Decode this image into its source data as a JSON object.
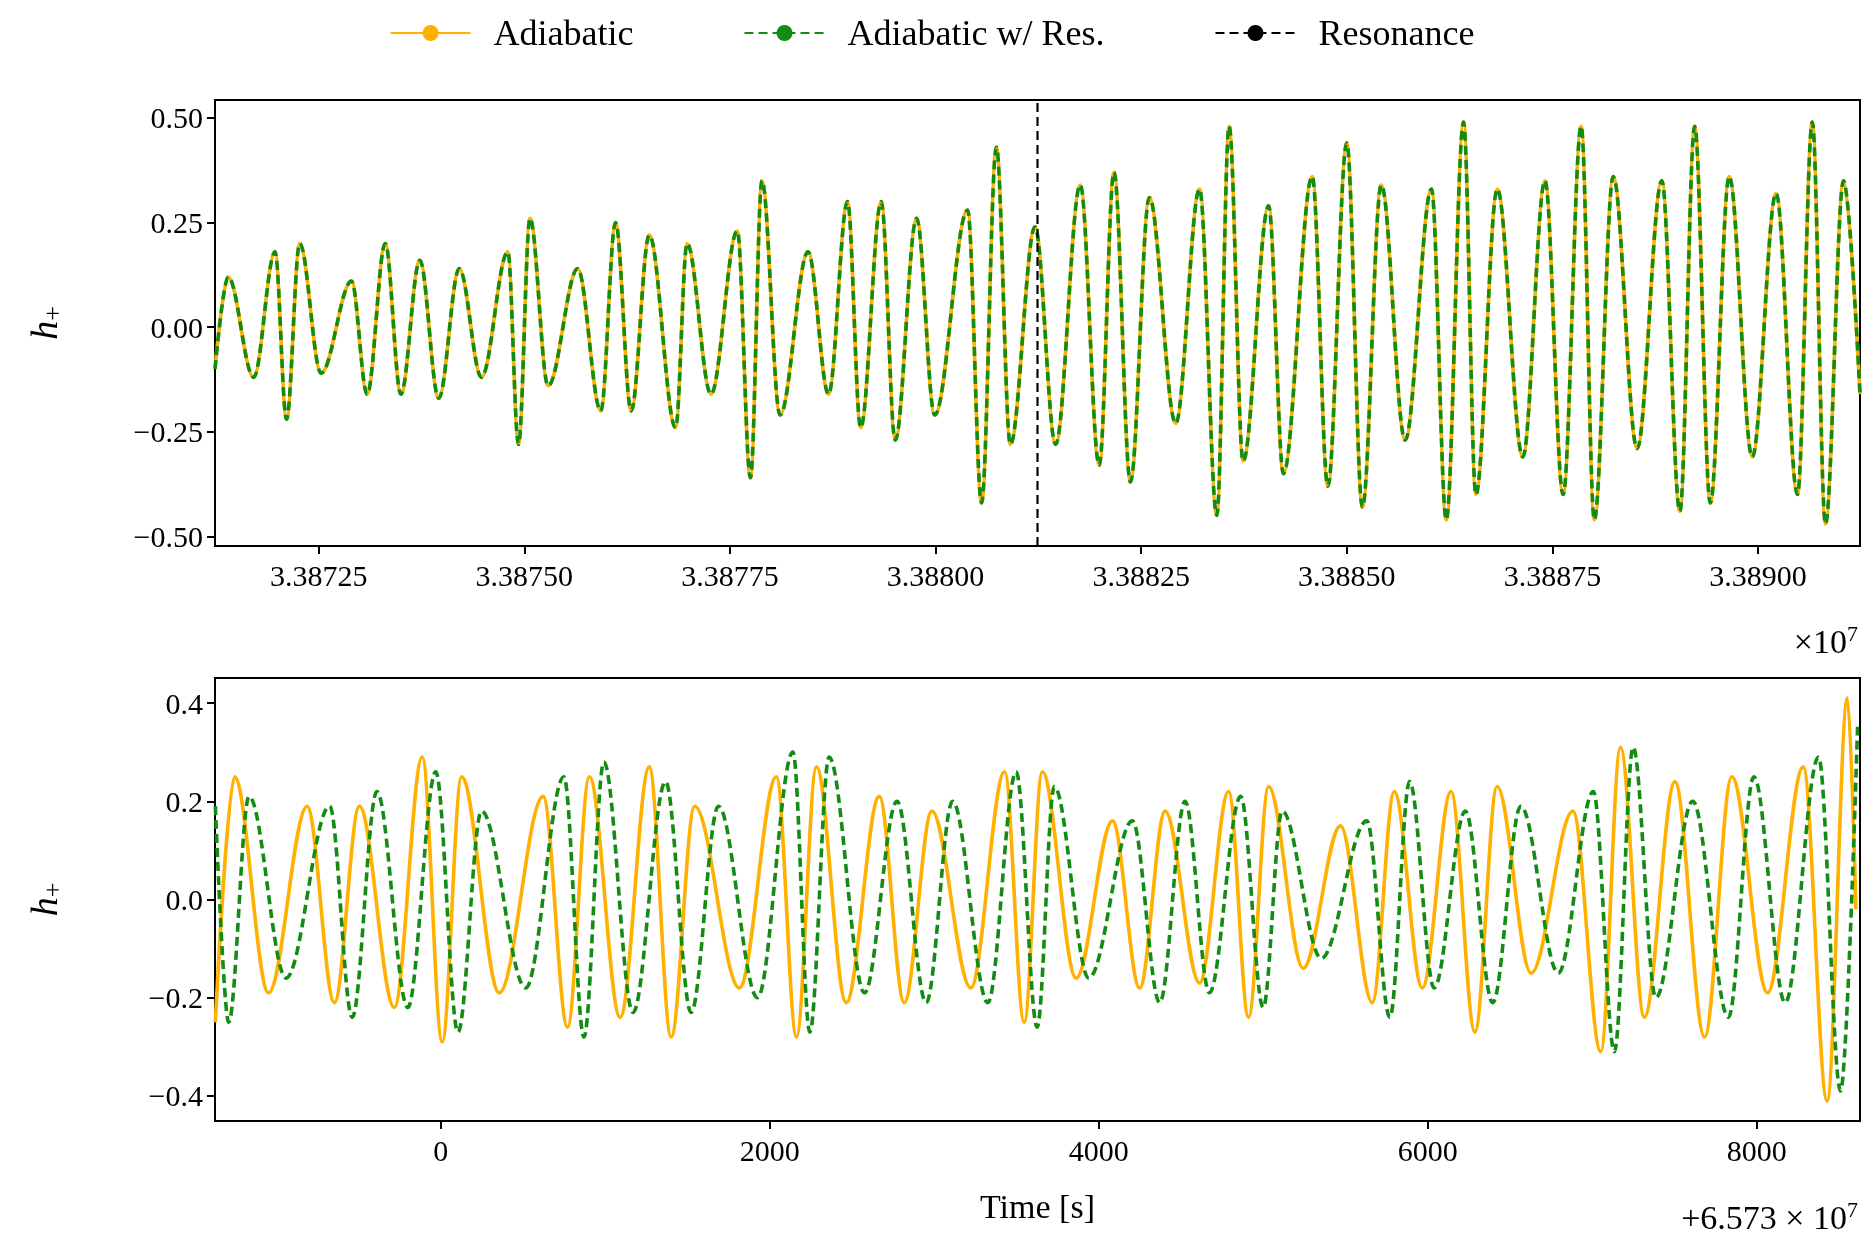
{
  "chart_data": [
    {
      "type": "line",
      "ylabel": "h$_{+}$",
      "annotations": [
        "×10$^{7}$"
      ],
      "legend": "top",
      "marker": "none",
      "xlim": [
        3.387124,
        3.389124
      ],
      "xticks": [
        3.38725,
        {
          "value": 3.3875,
          "label": "3.38750"
        },
        3.38775,
        {
          "value": 3.388,
          "label": "3.38800"
        },
        3.38825,
        {
          "value": 3.3885,
          "label": "3.38850"
        },
        3.38875,
        {
          "value": 3.389,
          "label": "3.38900"
        }
      ],
      "ylim": [
        -0.523,
        0.543
      ],
      "yticks": [
        {
          "value": -0.5,
          "label": "−0.50"
        },
        {
          "value": -0.25,
          "label": "−0.25"
        },
        {
          "value": 0,
          "label": "0.00"
        },
        {
          "value": 0.25,
          "label": "0.25"
        },
        {
          "value": 0.5,
          "label": "0.50"
        }
      ],
      "ref_lines": [
        {
          "axis": "x",
          "value": 3.388124,
          "label": "Resonance",
          "color": "#000000",
          "line_style": "dashed"
        }
      ],
      "x": [
        3.387124,
        3.38714,
        3.387171,
        3.387197,
        3.387211,
        3.387227,
        3.387253,
        3.38729,
        3.387309,
        3.387331,
        3.38735,
        3.387373,
        3.387396,
        3.387421,
        3.387448,
        3.38748,
        3.387493,
        3.387507,
        3.387529,
        3.387565,
        3.387593,
        3.387611,
        3.38763,
        3.387652,
        3.387684,
        3.387698,
        3.387727,
        3.387759,
        3.387775,
        3.387789,
        3.387811,
        3.387845,
        3.38787,
        3.387893,
        3.387909,
        3.387934,
        3.387951,
        3.387977,
        3.387999,
        3.388039,
        3.388056,
        3.388074,
        3.388091,
        3.388121,
        3.388146,
        3.388176,
        3.388199,
        3.388217,
        3.388237,
        3.38826,
        3.388292,
        3.388321,
        3.388342,
        3.388357,
        3.388374,
        3.388405,
        3.388423,
        3.388458,
        3.388477,
        3.3885,
        3.388519,
        3.388542,
        3.388571,
        3.388603,
        3.388621,
        3.388642,
        3.388657,
        3.388683,
        3.388714,
        3.388741,
        3.388763,
        3.388785,
        3.388801,
        3.388824,
        3.388853,
        3.388883,
        3.388905,
        3.388923,
        3.388942,
        3.388965,
        3.388993,
        3.389022,
        3.389048,
        3.389066,
        3.389082,
        3.389104,
        3.389124
      ],
      "series": [
        {
          "name": "Adiabatic",
          "color": "#ffb000",
          "line_style": "solid",
          "values": [
            -0.1,
            0.12,
            -0.12,
            0.18,
            -0.22,
            0.2,
            -0.11,
            0.11,
            -0.16,
            0.2,
            -0.16,
            0.16,
            -0.17,
            0.14,
            -0.12,
            0.18,
            -0.28,
            0.26,
            -0.14,
            0.14,
            -0.2,
            0.25,
            -0.2,
            0.22,
            -0.24,
            0.2,
            -0.16,
            0.23,
            -0.36,
            0.35,
            -0.21,
            0.18,
            -0.16,
            0.3,
            -0.24,
            0.3,
            -0.27,
            0.26,
            -0.21,
            0.28,
            -0.42,
            0.43,
            -0.28,
            0.24,
            -0.28,
            0.34,
            -0.33,
            0.37,
            -0.37,
            0.31,
            -0.23,
            0.33,
            -0.45,
            0.48,
            -0.32,
            0.29,
            -0.35,
            0.36,
            -0.38,
            0.44,
            -0.43,
            0.34,
            -0.27,
            0.33,
            -0.46,
            0.49,
            -0.4,
            0.33,
            -0.31,
            0.35,
            -0.4,
            0.48,
            -0.46,
            0.36,
            -0.29,
            0.35,
            -0.44,
            0.48,
            -0.42,
            0.36,
            -0.31,
            0.32,
            -0.4,
            0.49,
            -0.47,
            0.35,
            -0.16
          ]
        },
        {
          "name": "Adiabatic w/ Res.",
          "color": "#138c13",
          "line_style": "dashed",
          "values": [
            -0.1,
            0.12,
            -0.12,
            0.18,
            -0.22,
            0.2,
            -0.11,
            0.11,
            -0.16,
            0.2,
            -0.16,
            0.16,
            -0.17,
            0.14,
            -0.12,
            0.18,
            -0.28,
            0.26,
            -0.14,
            0.14,
            -0.2,
            0.25,
            -0.2,
            0.22,
            -0.24,
            0.2,
            -0.16,
            0.23,
            -0.36,
            0.35,
            -0.21,
            0.18,
            -0.16,
            0.3,
            -0.24,
            0.3,
            -0.27,
            0.26,
            -0.21,
            0.28,
            -0.42,
            0.43,
            -0.28,
            0.24,
            -0.28,
            0.34,
            -0.33,
            0.37,
            -0.37,
            0.31,
            -0.23,
            0.33,
            -0.45,
            0.48,
            -0.32,
            0.29,
            -0.35,
            0.36,
            -0.38,
            0.44,
            -0.43,
            0.34,
            -0.27,
            0.33,
            -0.46,
            0.49,
            -0.4,
            0.33,
            -0.31,
            0.35,
            -0.4,
            0.48,
            -0.46,
            0.36,
            -0.29,
            0.35,
            -0.44,
            0.48,
            -0.42,
            0.36,
            -0.31,
            0.32,
            -0.4,
            0.49,
            -0.47,
            0.35,
            -0.16
          ]
        }
      ]
    },
    {
      "type": "line",
      "xlabel": "Time [s]",
      "ylabel": "h$_{+}$",
      "annotations": [
        "+6.573 × 10$^{7}$"
      ],
      "marker": "none",
      "xlim": [
        -1372,
        8628
      ],
      "xticks": [
        0,
        2000,
        4000,
        6000,
        8000
      ],
      "ylim": [
        -0.451,
        0.451
      ],
      "yticks": [
        {
          "value": -0.4,
          "label": "−0.4"
        },
        {
          "value": -0.2,
          "label": "−0.2"
        },
        {
          "value": 0,
          "label": "0.0"
        },
        {
          "value": 0.2,
          "label": "0.2"
        },
        {
          "value": 0.4,
          "label": "0.4"
        }
      ],
      "series": [
        {
          "color": "#ffb000",
          "line_style": "solid",
          "x": [
            -1370,
            -1253,
            -1046,
            -812,
            -646,
            -494,
            -282,
            -112,
            9,
            127,
            356,
            623,
            771,
            904,
            1091,
            1268,
            1401,
            1544,
            1816,
            2041,
            2163,
            2284,
            2465,
            2666,
            2818,
            2986,
            3222,
            3428,
            3547,
            3657,
            3863,
            4084,
            4249,
            4404,
            4613,
            4790,
            4911,
            5033,
            5243,
            5470,
            5663,
            5797,
            5967,
            6142,
            6287,
            6422,
            6628,
            6883,
            7052,
            7172,
            7317,
            7503,
            7683,
            7849,
            8066,
            8283,
            8428,
            8552,
            8603
          ],
          "values": [
            -0.25,
            0.25,
            -0.19,
            0.19,
            -0.21,
            0.19,
            -0.22,
            0.29,
            -0.29,
            0.25,
            -0.19,
            0.21,
            -0.26,
            0.25,
            -0.24,
            0.27,
            -0.28,
            0.19,
            -0.18,
            0.25,
            -0.28,
            0.27,
            -0.21,
            0.21,
            -0.21,
            0.18,
            -0.18,
            0.26,
            -0.25,
            0.26,
            -0.16,
            0.16,
            -0.18,
            0.18,
            -0.17,
            0.22,
            -0.24,
            0.23,
            -0.14,
            0.15,
            -0.21,
            0.22,
            -0.18,
            0.22,
            -0.27,
            0.23,
            -0.15,
            0.18,
            -0.31,
            0.31,
            -0.24,
            0.24,
            -0.28,
            0.25,
            -0.19,
            0.27,
            -0.41,
            0.41,
            -0.02
          ]
        },
        {
          "color": "#138c13",
          "line_style": "dashed",
          "x": [
            -1370,
            -1289,
            -1165,
            -940,
            -675,
            -538,
            -388,
            -200,
            -30,
            105,
            248,
            517,
            749,
            871,
            992,
            1169,
            1367,
            1522,
            1688,
            1926,
            2141,
            2244,
            2361,
            2576,
            2774,
            2951,
            3112,
            3326,
            3498,
            3626,
            3730,
            3940,
            4205,
            4371,
            4525,
            4673,
            4863,
            5000,
            5115,
            5353,
            5630,
            5770,
            5890,
            6039,
            6229,
            6395,
            6566,
            6794,
            7007,
            7135,
            7249,
            7387,
            7611,
            7828,
            7983,
            8173,
            8376,
            8510,
            8614
          ],
          "values": [
            0.19,
            -0.25,
            0.21,
            -0.16,
            0.19,
            -0.24,
            0.22,
            -0.22,
            0.26,
            -0.27,
            0.18,
            -0.18,
            0.25,
            -0.28,
            0.28,
            -0.23,
            0.24,
            -0.23,
            0.19,
            -0.2,
            0.3,
            -0.27,
            0.29,
            -0.19,
            0.2,
            -0.21,
            0.2,
            -0.21,
            0.26,
            -0.26,
            0.23,
            -0.16,
            0.16,
            -0.21,
            0.2,
            -0.19,
            0.21,
            -0.22,
            0.18,
            -0.12,
            0.16,
            -0.24,
            0.24,
            -0.18,
            0.18,
            -0.21,
            0.19,
            -0.15,
            0.22,
            -0.31,
            0.31,
            -0.2,
            0.2,
            -0.24,
            0.25,
            -0.21,
            0.29,
            -0.39,
            0.36
          ]
        }
      ]
    }
  ]
}
